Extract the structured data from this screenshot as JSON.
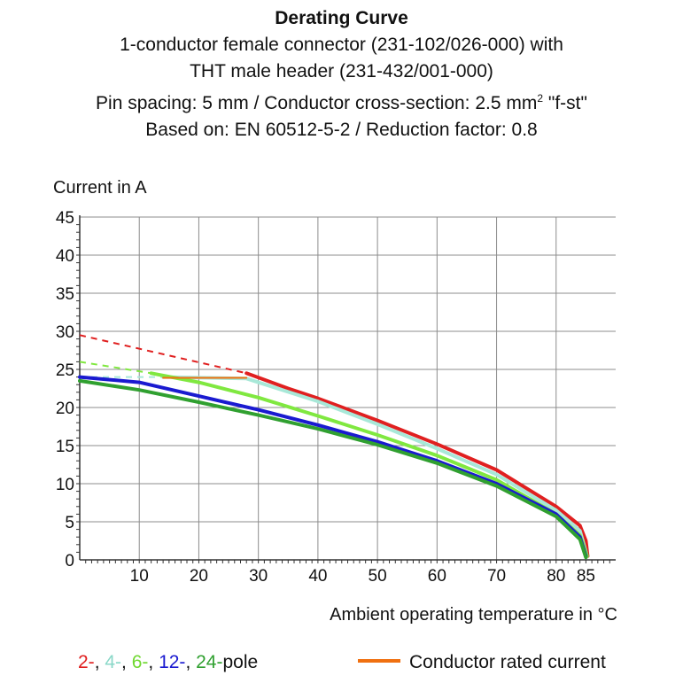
{
  "title": {
    "line1": "Derating Curve",
    "line2": "1-conductor female connector (231-102/026-000) with",
    "line3": "THT male header (231-432/001-000)",
    "line4_pre": "Pin spacing: 5 mm / Conductor cross-section: 2.5 mm",
    "line4_sup": "2",
    "line4_post": " \"f-st\"",
    "line5": "Based on: EN 60512-5-2 / Reduction factor: 0.8"
  },
  "chart_data": {
    "type": "line",
    "ylabel": "Current in A",
    "xlabel": "Ambient operating temperature in °C",
    "xlim": [
      0,
      90
    ],
    "ylim": [
      0,
      45
    ],
    "x_ticks": [
      10,
      20,
      30,
      40,
      50,
      60,
      70,
      80,
      85
    ],
    "y_ticks": [
      0,
      5,
      10,
      15,
      20,
      25,
      30,
      35,
      40,
      45
    ],
    "grid": true,
    "series": [
      {
        "name": "2",
        "color": "#e02020",
        "dashed_points": [
          [
            0,
            29.5
          ],
          [
            28,
            24.5
          ]
        ],
        "points": [
          [
            28,
            24.5
          ],
          [
            35,
            22.5
          ],
          [
            40,
            21.2
          ],
          [
            50,
            18.3
          ],
          [
            60,
            15.2
          ],
          [
            70,
            11.8
          ],
          [
            80,
            7.0
          ],
          [
            84,
            4.5
          ],
          [
            85,
            2.5
          ],
          [
            85.3,
            0.5
          ]
        ]
      },
      {
        "name": "4",
        "color": "#a8e8d8",
        "dashed_points": [
          [
            0,
            24.0
          ],
          [
            14,
            24.0
          ]
        ],
        "points": [
          [
            14,
            24.0
          ],
          [
            28,
            23.8
          ],
          [
            40,
            20.8
          ],
          [
            50,
            17.8
          ],
          [
            60,
            14.6
          ],
          [
            70,
            11.2
          ],
          [
            80,
            6.5
          ],
          [
            84,
            3.8
          ],
          [
            85.2,
            0.5
          ]
        ]
      },
      {
        "name": "6",
        "color": "#80e840",
        "dashed_points": [
          [
            0,
            26.0
          ],
          [
            12,
            24.5
          ]
        ],
        "points": [
          [
            12,
            24.5
          ],
          [
            20,
            23.3
          ],
          [
            30,
            21.3
          ],
          [
            40,
            18.9
          ],
          [
            50,
            16.4
          ],
          [
            60,
            13.7
          ],
          [
            70,
            10.5
          ],
          [
            80,
            6.0
          ],
          [
            84,
            3.2
          ],
          [
            85.2,
            0.5
          ]
        ]
      },
      {
        "name": "12",
        "color": "#1a1ad0",
        "dashed_points": [],
        "points": [
          [
            0,
            24.0
          ],
          [
            10,
            23.3
          ],
          [
            20,
            21.5
          ],
          [
            30,
            19.7
          ],
          [
            40,
            17.7
          ],
          [
            50,
            15.5
          ],
          [
            60,
            13.0
          ],
          [
            70,
            10.0
          ],
          [
            80,
            6.0
          ],
          [
            84,
            3.0
          ],
          [
            85,
            0.5
          ]
        ]
      },
      {
        "name": "24",
        "color": "#30a030",
        "dashed_points": [],
        "points": [
          [
            0,
            23.5
          ],
          [
            10,
            22.3
          ],
          [
            20,
            20.7
          ],
          [
            30,
            19.0
          ],
          [
            40,
            17.2
          ],
          [
            50,
            15.1
          ],
          [
            60,
            12.7
          ],
          [
            70,
            9.7
          ],
          [
            80,
            5.7
          ],
          [
            84,
            2.7
          ],
          [
            85,
            0.3
          ]
        ]
      },
      {
        "name": "Conductor rated current",
        "color": "#f07010",
        "dashed_points": [],
        "points": [
          [
            14,
            23.9
          ],
          [
            28,
            23.9
          ]
        ]
      }
    ],
    "legend": {
      "placement": "bottom",
      "pole_items": [
        {
          "text": "2-",
          "color": "#e02020"
        },
        {
          "text": ", ",
          "color": "#111111"
        },
        {
          "text": "4-",
          "color": "#8ad8c8"
        },
        {
          "text": ", ",
          "color": "#111111"
        },
        {
          "text": "6-",
          "color": "#70d830"
        },
        {
          "text": ", ",
          "color": "#111111"
        },
        {
          "text": "12-",
          "color": "#1a1ad0"
        },
        {
          "text": ", ",
          "color": "#111111"
        },
        {
          "text": "24-",
          "color": "#30a030"
        },
        {
          "text": "pole",
          "color": "#111111"
        }
      ],
      "rated_label": "Conductor rated current",
      "rated_color": "#f07010"
    }
  }
}
